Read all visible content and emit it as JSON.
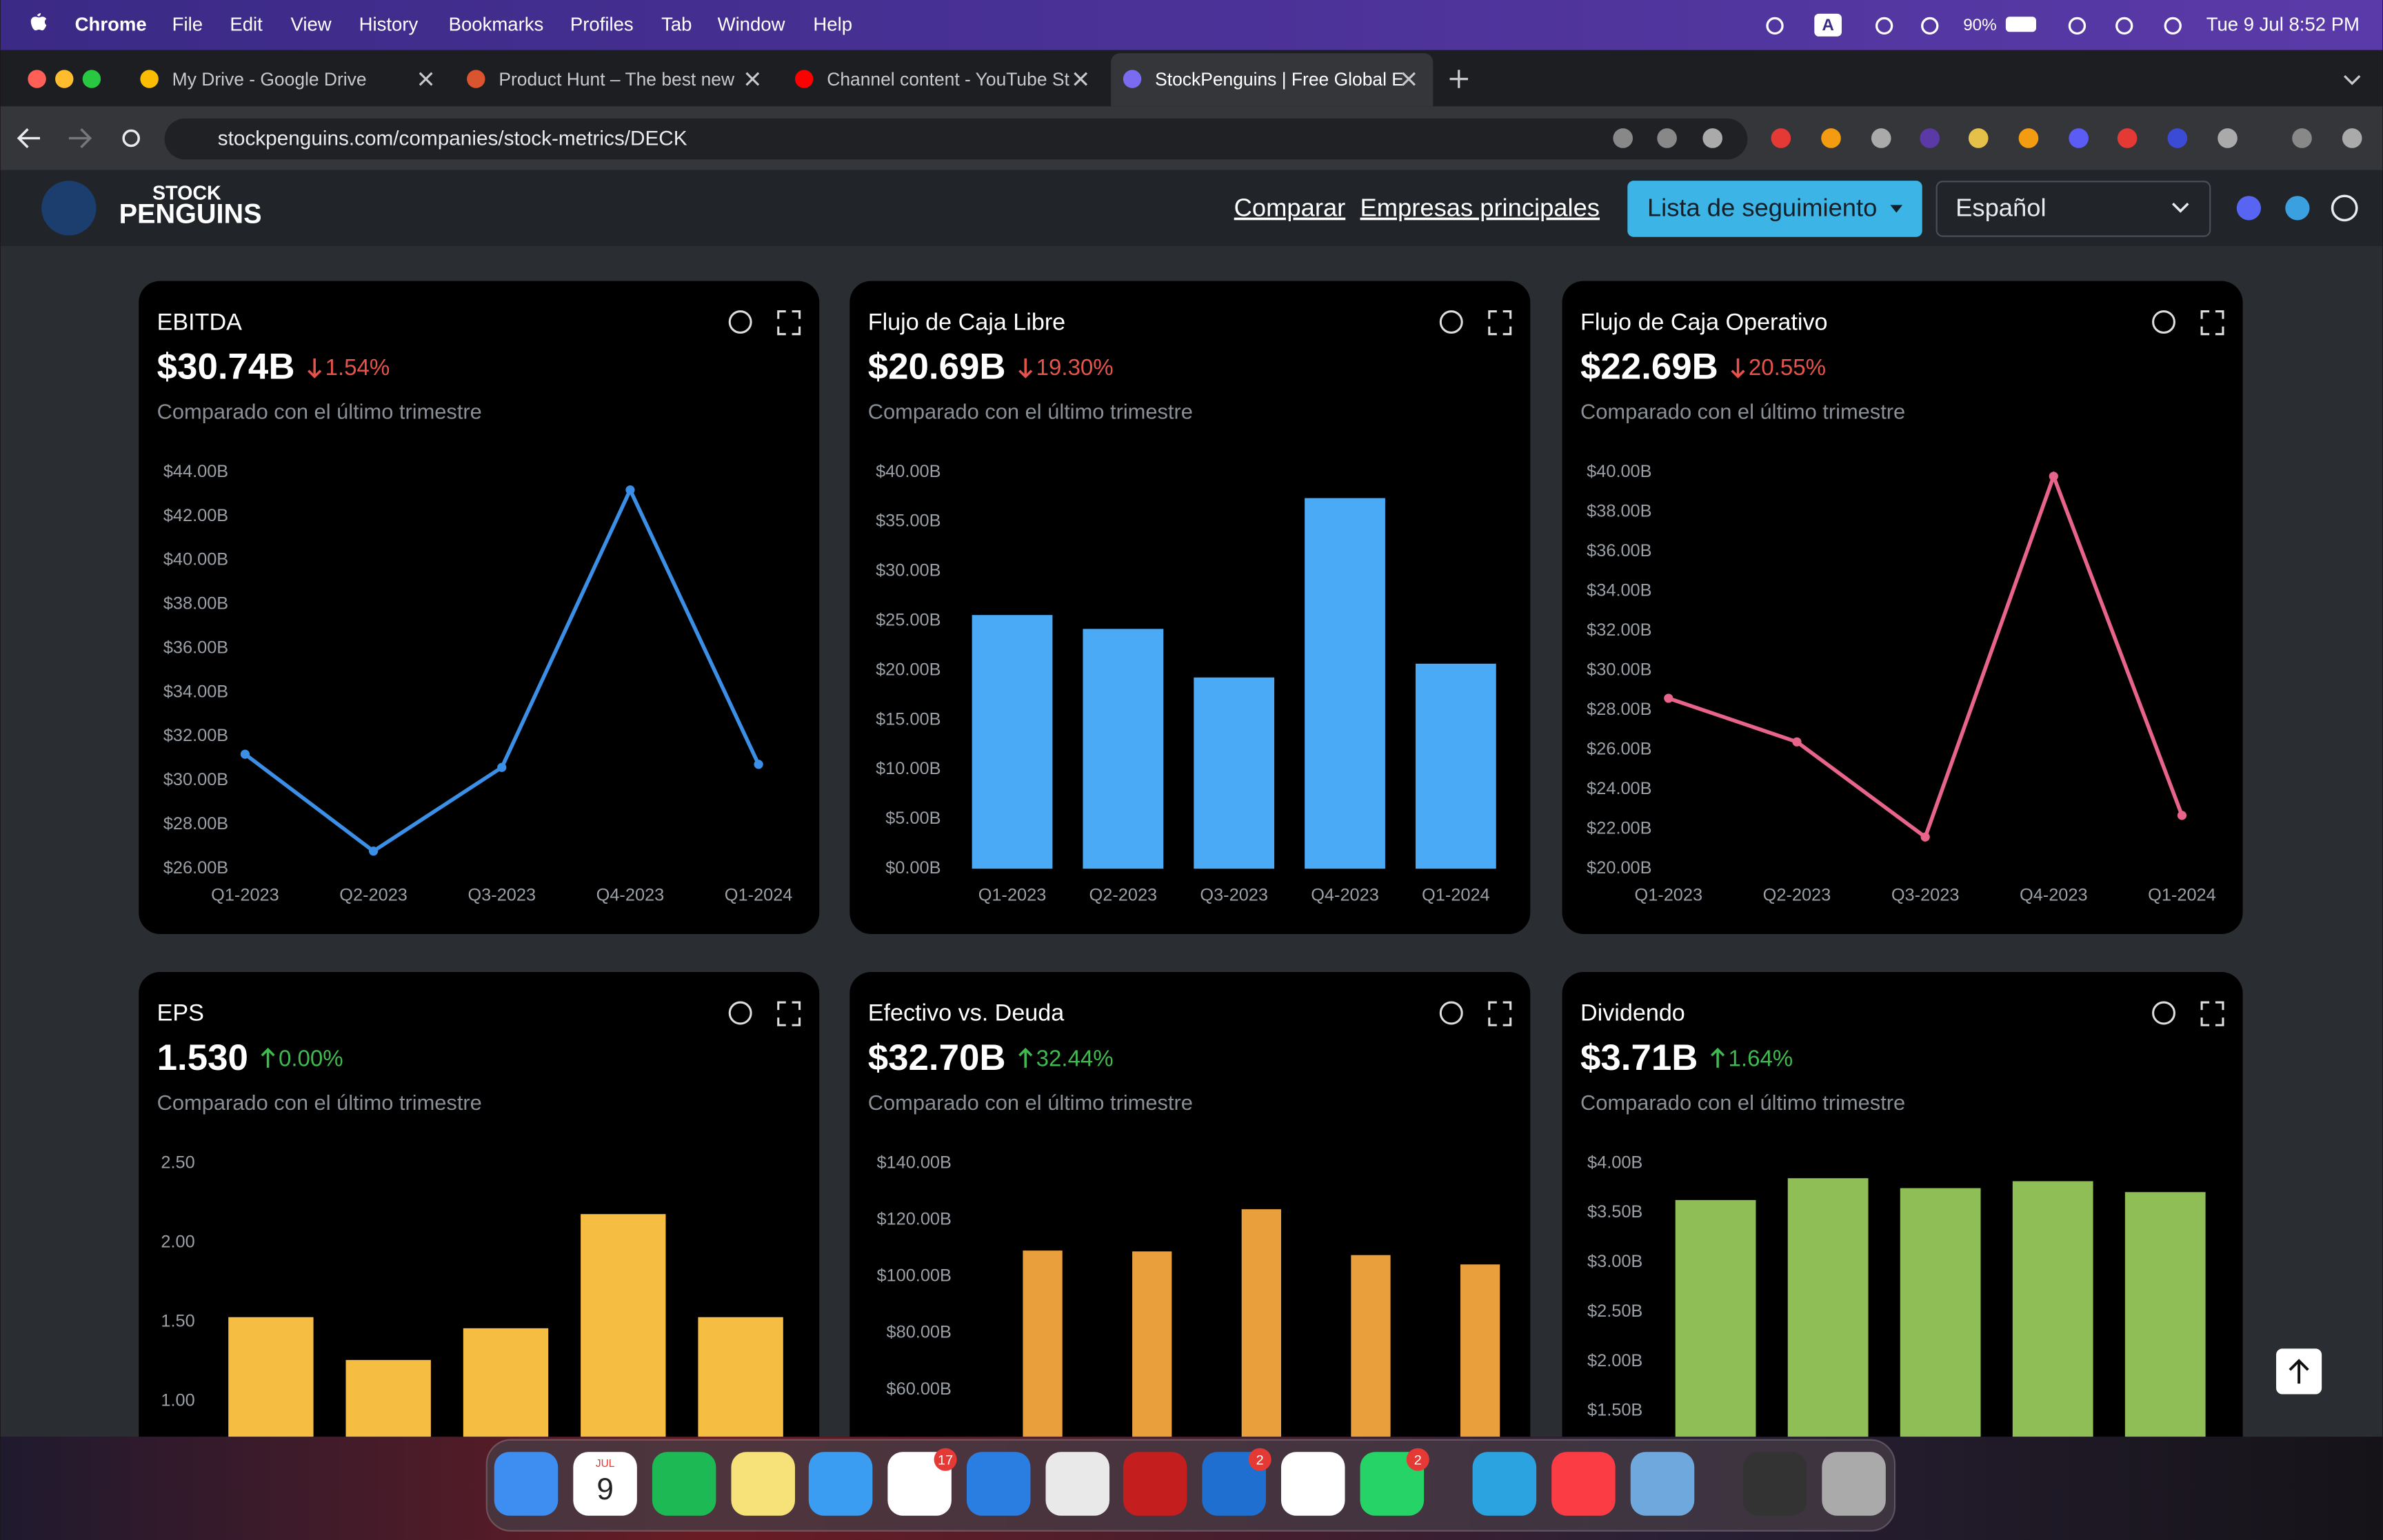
{
  "menu_bar": {
    "app": "Chrome",
    "items": [
      "File",
      "Edit",
      "View",
      "History",
      "Bookmarks",
      "Profiles",
      "Tab",
      "Window",
      "Help"
    ],
    "input_source": "A",
    "battery": "90%",
    "clock": "Tue 9 Jul  8:52 PM"
  },
  "tabs": [
    "My Drive - Google Drive",
    "Product Hunt – The best new",
    "Channel content - YouTube St",
    "StockPenguins | Free Global E"
  ],
  "address_bar": {
    "url": "stockpenguins.com/companies/stock-metrics/DECK"
  },
  "site_header": {
    "logo_top": "STOCK",
    "logo_bottom": "PENGUINS",
    "nav": [
      "Comparar",
      "Empresas principales"
    ],
    "watchlist_button": "Lista de seguimiento",
    "language": "Español"
  },
  "cards": [
    {
      "title": "EBITDA",
      "headline": "$30.74B",
      "change": "1.54%",
      "trend": "down",
      "caption": "Comparado con el último trimestre"
    },
    {
      "title": "Flujo de Caja Libre",
      "headline": "$20.69B",
      "change": "19.30%",
      "trend": "down",
      "caption": "Comparado con el último trimestre"
    },
    {
      "title": "Flujo de Caja Operativo",
      "headline": "$22.69B",
      "change": "20.55%",
      "trend": "down",
      "caption": "Comparado con el último trimestre"
    },
    {
      "title": "EPS",
      "headline": "1.530",
      "change": "0.00%",
      "trend": "up",
      "caption": "Comparado con el último trimestre"
    },
    {
      "title": "Efectivo vs. Deuda",
      "headline": "$32.70B",
      "change": "32.44%",
      "trend": "up",
      "caption": "Comparado con el último trimestre"
    },
    {
      "title": "Dividendo",
      "headline": "$3.71B",
      "change": "1.64%",
      "trend": "up",
      "caption": "Comparado con el último trimestre"
    }
  ],
  "chart_data": [
    {
      "type": "line",
      "color": "#3b8fe6",
      "categories": [
        "Q1-2023",
        "Q2-2023",
        "Q3-2023",
        "Q4-2023",
        "Q1-2024"
      ],
      "values": [
        31.2,
        26.8,
        30.6,
        43.2,
        30.74
      ],
      "ylim": [
        26,
        44
      ],
      "yticks": [
        {
          "value": 26,
          "label": "$26.00B"
        },
        {
          "value": 28,
          "label": "$28.00B"
        },
        {
          "value": 30,
          "label": "$30.00B"
        },
        {
          "value": 32,
          "label": "$32.00B"
        },
        {
          "value": 34,
          "label": "$34.00B"
        },
        {
          "value": 36,
          "label": "$36.00B"
        },
        {
          "value": 38,
          "label": "$38.00B"
        },
        {
          "value": 40,
          "label": "$40.00B"
        },
        {
          "value": 42,
          "label": "$42.00B"
        },
        {
          "value": 44,
          "label": "$44.00B"
        }
      ]
    },
    {
      "type": "bar",
      "color": "#4aaaf5",
      "categories": [
        "Q1-2023",
        "Q2-2023",
        "Q3-2023",
        "Q4-2023",
        "Q1-2024"
      ],
      "values": [
        25.6,
        24.2,
        19.3,
        37.4,
        20.69
      ],
      "ylim": [
        0,
        40
      ],
      "yticks": [
        {
          "value": 0,
          "label": "$0.00B"
        },
        {
          "value": 5,
          "label": "$5.00B"
        },
        {
          "value": 10,
          "label": "$10.00B"
        },
        {
          "value": 15,
          "label": "$15.00B"
        },
        {
          "value": 20,
          "label": "$20.00B"
        },
        {
          "value": 25,
          "label": "$25.00B"
        },
        {
          "value": 30,
          "label": "$30.00B"
        },
        {
          "value": 35,
          "label": "$35.00B"
        },
        {
          "value": 40,
          "label": "$40.00B"
        }
      ]
    },
    {
      "type": "line",
      "color": "#e8648a",
      "categories": [
        "Q1-2023",
        "Q2-2023",
        "Q3-2023",
        "Q4-2023",
        "Q1-2024"
      ],
      "values": [
        28.6,
        26.4,
        21.6,
        39.8,
        22.69
      ],
      "ylim": [
        20,
        40
      ],
      "yticks": [
        {
          "value": 20,
          "label": "$20.00B"
        },
        {
          "value": 22,
          "label": "$22.00B"
        },
        {
          "value": 24,
          "label": "$24.00B"
        },
        {
          "value": 26,
          "label": "$26.00B"
        },
        {
          "value": 28,
          "label": "$28.00B"
        },
        {
          "value": 30,
          "label": "$30.00B"
        },
        {
          "value": 32,
          "label": "$32.00B"
        },
        {
          "value": 34,
          "label": "$34.00B"
        },
        {
          "value": 36,
          "label": "$36.00B"
        },
        {
          "value": 38,
          "label": "$38.00B"
        },
        {
          "value": 40,
          "label": "$40.00B"
        }
      ]
    },
    {
      "type": "bar",
      "color": "#f5bd42",
      "values": [
        1.53,
        1.26,
        1.46,
        2.18,
        1.53
      ],
      "ylim": [
        0,
        2.5
      ],
      "yticks": [
        {
          "value": 1,
          "label": "1.00"
        },
        {
          "value": 1.5,
          "label": "1.50"
        },
        {
          "value": 2,
          "label": "2.00"
        },
        {
          "value": 2.5,
          "label": "2.50"
        }
      ]
    },
    {
      "type": "bar",
      "color": "#e9a03c",
      "values": [
        109.2,
        108.9,
        123.8,
        107.6,
        104.3
      ],
      "ylim": [
        0,
        140
      ],
      "yticks": [
        {
          "value": 60,
          "label": "$60.00B"
        },
        {
          "value": 80,
          "label": "$80.00B"
        },
        {
          "value": 100,
          "label": "$100.00B"
        },
        {
          "value": 120,
          "label": "$120.00B"
        },
        {
          "value": 140,
          "label": "$140.00B"
        }
      ]
    },
    {
      "type": "bar",
      "color": "#8fbd56",
      "values": [
        3.63,
        3.85,
        3.75,
        3.82,
        3.71
      ],
      "ylim": [
        0,
        4
      ],
      "yticks": [
        {
          "value": 1.5,
          "label": "$1.50B"
        },
        {
          "value": 2,
          "label": "$2.00B"
        },
        {
          "value": 2.5,
          "label": "$2.50B"
        },
        {
          "value": 3,
          "label": "$3.00B"
        },
        {
          "value": 3.5,
          "label": "$3.50B"
        },
        {
          "value": 4,
          "label": "$4.00B"
        }
      ]
    }
  ],
  "dock": {
    "calendar_month": "JUL",
    "calendar_day": "9",
    "badges": [
      "17",
      "2",
      "2"
    ]
  }
}
